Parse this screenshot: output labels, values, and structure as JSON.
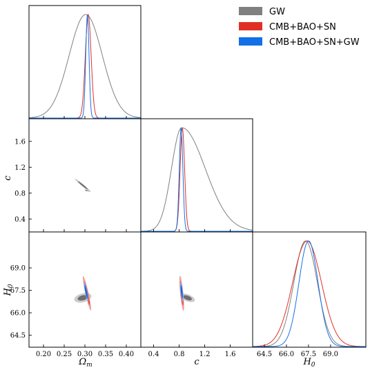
{
  "colors": {
    "gw": "#808080",
    "cmb": "#e03025",
    "combined": "#1470e6",
    "gw_inner": "#6e6e6e",
    "gw_outer": "#cbcbcb",
    "cmb_inner": "#e84a3c",
    "cmb_outer": "#f2a09a",
    "comb_inner": "#1060e0",
    "comb_outer": "#7fb0f0"
  },
  "legend": {
    "placement": "top-right",
    "items": [
      {
        "key": "gw",
        "label": "GW"
      },
      {
        "key": "cmb",
        "label": "CMB+BAO+SN"
      },
      {
        "key": "combined",
        "label": "CMB+BAO+SN+GW"
      }
    ]
  },
  "axes": {
    "omega_m": {
      "label": "Ω_m",
      "range": [
        0.165,
        0.435
      ],
      "ticks": [
        "0.20",
        "0.25",
        "0.30",
        "0.35",
        "0.40"
      ]
    },
    "c": {
      "label": "c",
      "range": [
        0.2,
        1.95
      ],
      "ticks": [
        "0.4",
        "0.8",
        "1.2",
        "1.6"
      ]
    },
    "H0": {
      "label": "H_0",
      "range": [
        63.7,
        71.4
      ],
      "ticks": [
        "64.5",
        "66.0",
        "67.5",
        "69.0"
      ]
    }
  },
  "chart_data": {
    "type": "corner",
    "parameters": [
      "Omega_m",
      "c",
      "H0"
    ],
    "series": [
      {
        "name": "GW",
        "marginals": {
          "Omega_m": {
            "mean": 0.302,
            "sigma": 0.04
          },
          "c": {
            "mean": 0.84,
            "sigma": 0.16,
            "skew": 2.3
          },
          "H0": {
            "mean": 67.3,
            "sigma": 0.8
          }
        },
        "contours_2d": {
          "c_vs_Omega_m": {
            "center": [
              0.295,
              0.92
            ],
            "angle_deg": -39,
            "semi_axes_68": [
              0.93,
              0.105
            ],
            "semi_axes_95": [
              1.55,
              0.165
            ]
          },
          "H0_vs_Omega_m": {
            "center": [
              0.295,
              67.0
            ],
            "angle_deg": 14,
            "semi_axes_68": [
              0.78,
              0.36
            ],
            "semi_axes_95": [
              1.3,
              0.64
            ]
          },
          "H0_vs_c": {
            "center": [
              0.93,
              67.0
            ],
            "angle_deg": -20,
            "semi_axes_68": [
              0.68,
              0.3
            ],
            "semi_axes_95": [
              1.15,
              0.5
            ]
          }
        }
      },
      {
        "name": "CMB+BAO+SN",
        "marginals": {
          "Omega_m": {
            "mean": 0.308,
            "sigma": 0.007
          },
          "c": {
            "mean": 0.85,
            "sigma": 0.035
          },
          "H0": {
            "mean": 67.4,
            "sigma": 0.98
          }
        },
        "contours_2d": {
          "c_vs_Omega_m": {
            "center": [
              0.305,
              0.84
            ],
            "angle_deg": -25,
            "semi_axes_68": [
              0.24,
              0.035
            ],
            "semi_axes_95": [
              0.4,
              0.058
            ]
          },
          "H0_vs_Omega_m": {
            "center": [
              0.305,
              67.3
            ],
            "angle_deg": -77,
            "semi_axes_68": [
              1.75,
              0.16
            ],
            "semi_axes_95": [
              2.55,
              0.24
            ]
          },
          "H0_vs_c": {
            "center": [
              0.84,
              67.3
            ],
            "angle_deg": -84,
            "semi_axes_68": [
              1.75,
              0.16
            ],
            "semi_axes_95": [
              2.55,
              0.24
            ]
          }
        }
      },
      {
        "name": "CMB+BAO+SN+GW",
        "marginals": {
          "Omega_m": {
            "mean": 0.306,
            "sigma": 0.004
          },
          "c": {
            "mean": 0.83,
            "sigma": 0.028
          },
          "H0": {
            "mean": 67.5,
            "sigma": 0.65
          }
        },
        "contours_2d": {
          "c_vs_Omega_m": {
            "center": [
              0.303,
              0.84
            ],
            "angle_deg": -35,
            "semi_axes_68": [
              0.09,
              0.05
            ],
            "semi_axes_95": [
              0.16,
              0.085
            ]
          },
          "H0_vs_Omega_m": {
            "center": [
              0.303,
              67.4
            ],
            "angle_deg": -78,
            "semi_axes_68": [
              1.0,
              0.11
            ],
            "semi_axes_95": [
              1.45,
              0.17
            ]
          },
          "H0_vs_c": {
            "center": [
              0.84,
              67.4
            ],
            "angle_deg": -84,
            "semi_axes_68": [
              1.0,
              0.11
            ],
            "semi_axes_95": [
              1.45,
              0.17
            ]
          }
        }
      }
    ]
  }
}
